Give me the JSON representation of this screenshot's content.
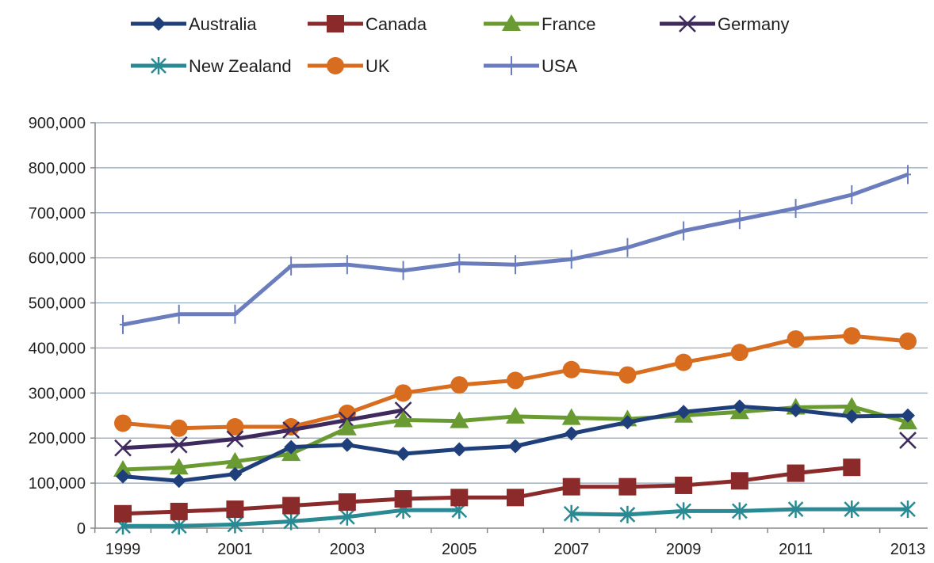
{
  "chart_data": {
    "type": "line",
    "title": "",
    "xlabel": "",
    "ylabel": "",
    "x": [
      1999,
      2000,
      2001,
      2002,
      2003,
      2004,
      2005,
      2006,
      2007,
      2008,
      2009,
      2010,
      2011,
      2012,
      2013
    ],
    "x_tick_labels": [
      "1999",
      "2001",
      "2003",
      "2005",
      "2007",
      "2009",
      "2011",
      "2013"
    ],
    "y_tick_labels": [
      "0",
      "100,000",
      "200,000",
      "300,000",
      "400,000",
      "500,000",
      "600,000",
      "700,000",
      "800,000",
      "900,000"
    ],
    "ylim": [
      0,
      900000
    ],
    "grid": "horizontal",
    "legend_position": "top",
    "series": [
      {
        "name": "Australia",
        "color": "#1f3f7a",
        "marker": "diamond",
        "values": [
          115000,
          105000,
          120000,
          180000,
          185000,
          165000,
          175000,
          182000,
          210000,
          235000,
          258000,
          270000,
          262000,
          248000,
          250000
        ]
      },
      {
        "name": "Canada",
        "color": "#8b2a2a",
        "marker": "square",
        "values": [
          32000,
          37000,
          42000,
          50000,
          58000,
          65000,
          68000,
          68000,
          92000,
          92000,
          95000,
          105000,
          122000,
          135000,
          null
        ]
      },
      {
        "name": "France",
        "color": "#6a9a32",
        "marker": "triangle",
        "values": [
          130000,
          135000,
          148000,
          165000,
          222000,
          240000,
          238000,
          248000,
          245000,
          242000,
          250000,
          258000,
          268000,
          270000,
          235000
        ]
      },
      {
        "name": "Germany",
        "color": "#3e2a5c",
        "marker": "x",
        "values": [
          178000,
          185000,
          198000,
          218000,
          240000,
          262000,
          null,
          null,
          null,
          null,
          null,
          null,
          null,
          null,
          195000
        ]
      },
      {
        "name": "New Zealand",
        "color": "#2a8a94",
        "marker": "asterisk",
        "values": [
          5000,
          5000,
          8000,
          15000,
          25000,
          40000,
          40000,
          null,
          32000,
          30000,
          38000,
          38000,
          42000,
          42000,
          42000
        ]
      },
      {
        "name": "UK",
        "color": "#d86d1f",
        "marker": "circle",
        "values": [
          233000,
          222000,
          225000,
          225000,
          255000,
          300000,
          318000,
          328000,
          352000,
          340000,
          368000,
          390000,
          420000,
          427000,
          415000
        ]
      },
      {
        "name": "USA",
        "color": "#6b7dbd",
        "marker": "plus",
        "values": [
          452000,
          475000,
          475000,
          582000,
          585000,
          572000,
          588000,
          585000,
          597000,
          623000,
          660000,
          685000,
          710000,
          740000,
          785000
        ]
      }
    ]
  }
}
